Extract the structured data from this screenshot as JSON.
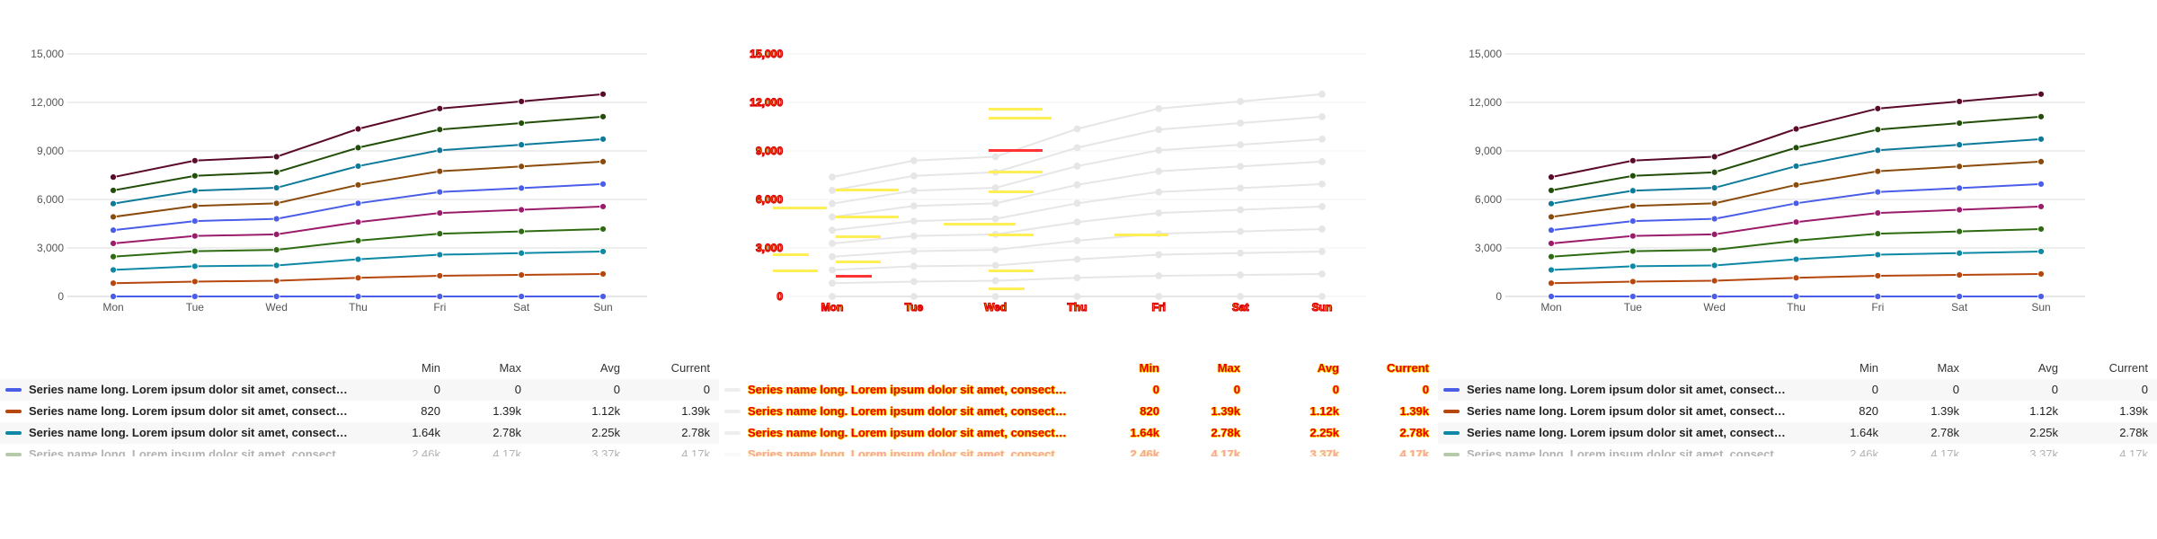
{
  "chart_data": [
    {
      "type": "line",
      "categories": [
        "Mon",
        "Tue",
        "Wed",
        "Thu",
        "Fri",
        "Sat",
        "Sun"
      ],
      "ylim": [
        0,
        15000
      ],
      "yticks": [
        0,
        3000,
        6000,
        9000,
        12000,
        15000
      ],
      "ytick_labels": [
        "0",
        "3,000",
        "6,000",
        "9,000",
        "12,000",
        "15,000"
      ],
      "grid": true,
      "series": [
        {
          "color": "#4a5de8",
          "values": [
            0,
            0,
            0,
            0,
            0,
            0,
            0
          ]
        },
        {
          "color": "#b5470f",
          "values": [
            820,
            920,
            970,
            1150,
            1280,
            1330,
            1390
          ]
        },
        {
          "color": "#0e88a5",
          "values": [
            1640,
            1870,
            1920,
            2300,
            2580,
            2680,
            2780
          ]
        },
        {
          "color": "#2e6b12",
          "values": [
            2460,
            2800,
            2880,
            3450,
            3880,
            4020,
            4170
          ]
        },
        {
          "color": "#9b1c6a",
          "values": [
            3280,
            3740,
            3840,
            4600,
            5160,
            5360,
            5560
          ]
        },
        {
          "color": "#4a5de8",
          "values": [
            4100,
            4660,
            4800,
            5760,
            6460,
            6700,
            6950
          ]
        },
        {
          "color": "#8a4b0c",
          "values": [
            4920,
            5600,
            5760,
            6900,
            7740,
            8040,
            8340
          ]
        },
        {
          "color": "#0e7a9a",
          "values": [
            5740,
            6540,
            6720,
            8060,
            9040,
            9380,
            9730
          ]
        },
        {
          "color": "#234e0a",
          "values": [
            6560,
            7460,
            7680,
            9200,
            10320,
            10720,
            11120
          ]
        },
        {
          "color": "#5a0a2a",
          "values": [
            7380,
            8400,
            8640,
            10360,
            11620,
            12060,
            12510
          ]
        }
      ]
    },
    {
      "type": "line",
      "categories": [
        "Mon",
        "Tue",
        "Wed",
        "Thu",
        "Fri",
        "Sat",
        "Sun"
      ],
      "ylim": [
        0,
        15000
      ],
      "yticks": [
        0,
        3000,
        6000,
        9000,
        12000,
        15000
      ],
      "ytick_labels": [
        "0",
        "3,000",
        "6,000",
        "9,000",
        "12,000",
        "15,000"
      ],
      "grid": true,
      "series": [
        {
          "color": "#4a5de8",
          "values": [
            0,
            0,
            0,
            0,
            0,
            0,
            0
          ]
        },
        {
          "color": "#b5470f",
          "values": [
            820,
            920,
            970,
            1150,
            1280,
            1330,
            1390
          ]
        },
        {
          "color": "#0e88a5",
          "values": [
            1640,
            1870,
            1920,
            2300,
            2580,
            2680,
            2780
          ]
        },
        {
          "color": "#2e6b12",
          "values": [
            2460,
            2800,
            2880,
            3450,
            3880,
            4020,
            4170
          ]
        },
        {
          "color": "#9b1c6a",
          "values": [
            3280,
            3740,
            3840,
            4600,
            5160,
            5360,
            5560
          ]
        },
        {
          "color": "#4a5de8",
          "values": [
            4100,
            4660,
            4800,
            5760,
            6460,
            6700,
            6950
          ]
        },
        {
          "color": "#8a4b0c",
          "values": [
            4920,
            5600,
            5760,
            6900,
            7740,
            8040,
            8340
          ]
        },
        {
          "color": "#0e7a9a",
          "values": [
            5740,
            6540,
            6720,
            8060,
            9040,
            9380,
            9730
          ]
        },
        {
          "color": "#234e0a",
          "values": [
            6560,
            7460,
            7680,
            9200,
            10320,
            10720,
            11120
          ]
        },
        {
          "color": "#5a0a2a",
          "values": [
            7380,
            8400,
            8640,
            10360,
            11620,
            12060,
            12510
          ]
        }
      ]
    },
    {
      "type": "line",
      "categories": [
        "Mon",
        "Tue",
        "Wed",
        "Thu",
        "Fri",
        "Sat",
        "Sun"
      ],
      "ylim": [
        0,
        15000
      ],
      "yticks": [
        0,
        3000,
        6000,
        9000,
        12000,
        15000
      ],
      "ytick_labels": [
        "0",
        "3,000",
        "6,000",
        "9,000",
        "12,000",
        "15,000"
      ],
      "grid": true,
      "series": [
        {
          "color": "#4a5de8",
          "values": [
            0,
            0,
            0,
            0,
            0,
            0,
            0
          ]
        },
        {
          "color": "#b5470f",
          "values": [
            820,
            920,
            970,
            1150,
            1280,
            1330,
            1390
          ]
        },
        {
          "color": "#0e88a5",
          "values": [
            1640,
            1870,
            1920,
            2300,
            2580,
            2680,
            2780
          ]
        },
        {
          "color": "#2e6b12",
          "values": [
            2460,
            2800,
            2880,
            3450,
            3880,
            4020,
            4170
          ]
        },
        {
          "color": "#9b1c6a",
          "values": [
            3280,
            3740,
            3840,
            4600,
            5160,
            5360,
            5560
          ]
        },
        {
          "color": "#4a5de8",
          "values": [
            4100,
            4660,
            4800,
            5760,
            6460,
            6700,
            6950
          ]
        },
        {
          "color": "#8a4b0c",
          "values": [
            4920,
            5600,
            5760,
            6900,
            7740,
            8040,
            8340
          ]
        },
        {
          "color": "#0e7a9a",
          "values": [
            5740,
            6540,
            6720,
            8060,
            9040,
            9380,
            9730
          ]
        },
        {
          "color": "#234e0a",
          "values": [
            6560,
            7460,
            7680,
            9200,
            10320,
            10720,
            11120
          ]
        },
        {
          "color": "#5a0a2a",
          "values": [
            7380,
            8400,
            8640,
            10360,
            11620,
            12060,
            12510
          ]
        }
      ]
    }
  ],
  "legend": {
    "columns": [
      "Min",
      "Max",
      "Avg",
      "Current"
    ],
    "rows": [
      {
        "name": "Series name long. Lorem ipsum dolor sit amet, consectetur adipiscing elit.",
        "color": "#4a5de8",
        "min": "0",
        "max": "0",
        "avg": "0",
        "current": "0"
      },
      {
        "name": "Series name long. Lorem ipsum dolor sit amet, consectetur adipiscing elit.",
        "color": "#b5470f",
        "min": "820",
        "max": "1.39k",
        "avg": "1.12k",
        "current": "1.39k"
      },
      {
        "name": "Series name long. Lorem ipsum dolor sit amet, consectetur adipiscing elit.",
        "color": "#0e88a5",
        "min": "1.64k",
        "max": "2.78k",
        "avg": "2.25k",
        "current": "2.78k"
      },
      {
        "name": "Series name long. Lorem ipsum dolor sit amet, consectetur adipiscing elit.",
        "color": "#2e6b12",
        "min": "2.46k",
        "max": "4.17k",
        "avg": "3.37k",
        "current": "4.17k"
      }
    ]
  }
}
